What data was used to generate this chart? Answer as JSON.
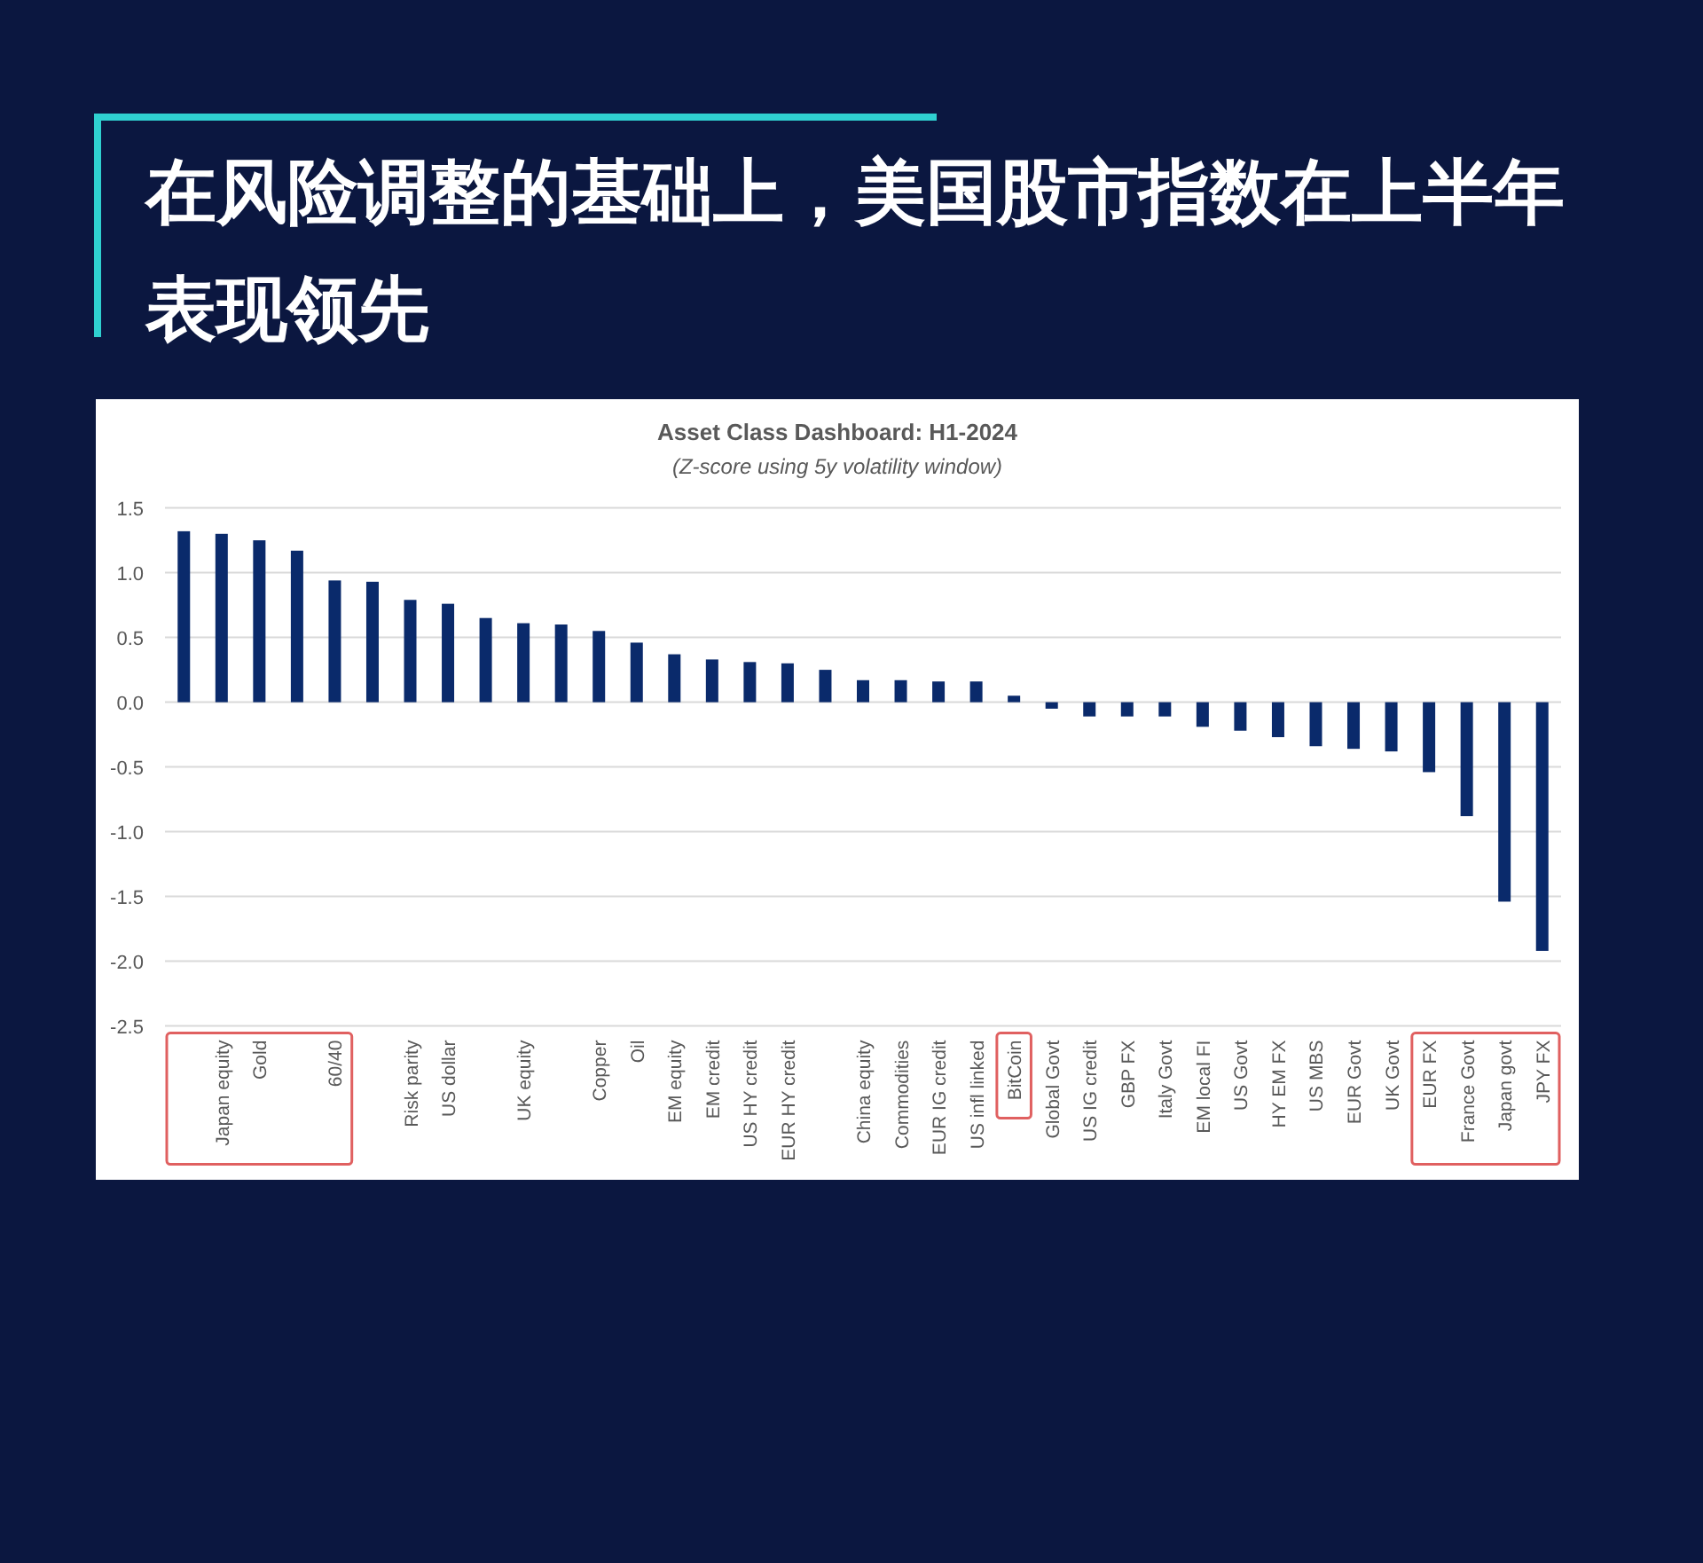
{
  "chart_data": {
    "type": "bar",
    "title": "Asset Class Dashboard: H1-2024",
    "subtitle": "(Z-score using 5y volatility window)",
    "annotations": [
      "在风险调整的基础上，美国股市指数在上半年表现领先"
    ],
    "categories": [
      null,
      "Japan equity",
      "Gold",
      null,
      "60/40",
      null,
      "Risk parity",
      "US dollar",
      null,
      "UK equity",
      null,
      "Copper",
      "Oil",
      "EM equity",
      "EM credit",
      "US HY credit",
      "EUR HY credit",
      null,
      "China equity",
      "Commodities",
      "EUR IG credit",
      "US infl linked",
      "BitCoin",
      "Global Govt",
      "US IG credit",
      "GBP FX",
      "Italy Govt",
      "EM local FI",
      "US Govt",
      "HY EM FX",
      "US MBS",
      "EUR Govt",
      "UK Govt",
      "EUR FX",
      "France Govt",
      "Japan govt",
      "JPY FX"
    ],
    "values": [
      1.32,
      1.3,
      1.25,
      1.17,
      0.94,
      0.93,
      0.79,
      0.76,
      0.65,
      0.61,
      0.6,
      0.55,
      0.46,
      0.37,
      0.33,
      0.31,
      0.3,
      0.25,
      0.17,
      0.17,
      0.16,
      0.16,
      0.05,
      -0.05,
      -0.11,
      -0.11,
      -0.11,
      -0.19,
      -0.22,
      -0.27,
      -0.34,
      -0.36,
      -0.38,
      -0.54,
      -0.88,
      -1.54,
      -1.92
    ],
    "color": "#0a2a6b",
    "ylim": [
      -2.5,
      1.5
    ],
    "yticks": [
      {
        "value": -2.5,
        "label": "-2.5"
      },
      {
        "value": -2,
        "label": "-2.0"
      },
      {
        "value": -1.5,
        "label": "-1.5"
      },
      {
        "value": -1,
        "label": "-1.0"
      },
      {
        "value": -0.5,
        "label": "-0.5"
      },
      {
        "value": 0,
        "label": "0.0"
      },
      {
        "value": 0.5,
        "label": "0.5"
      },
      {
        "value": 1,
        "label": "1.0"
      },
      {
        "value": 1.5,
        "label": "1.5"
      }
    ],
    "grid": "y"
  }
}
